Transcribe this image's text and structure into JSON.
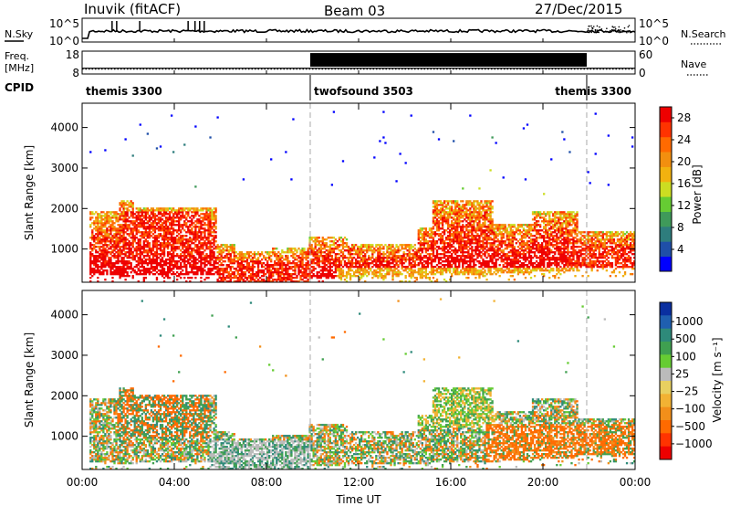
{
  "header": {
    "station": "Inuvik (fitACF)",
    "beam": "Beam 03",
    "date": "27/Dec/2015"
  },
  "left_labels": {
    "nsky": "N.Sky",
    "freq": "Freq.",
    "freq_unit": "[MHz]",
    "cpid": "CPID"
  },
  "right_labels": {
    "nsearch": "N.Search",
    "nave": "Nave"
  },
  "cpid_segments": [
    {
      "label": "themis 3300",
      "start_h": 0,
      "end_h": 9.9
    },
    {
      "label": "twofsound 3503",
      "start_h": 9.9,
      "end_h": 21.9
    },
    {
      "label": "themis 3300",
      "start_h": 21.9,
      "end_h": 24
    }
  ],
  "chart_data": [
    {
      "type": "line",
      "panel": "noise",
      "yticks_left": [
        "10^5",
        "10^0"
      ],
      "yticks_right": [
        "10^5",
        "10^0"
      ],
      "x_range_h": [
        0,
        24
      ]
    },
    {
      "type": "line",
      "panel": "frequency",
      "yticks_left": [
        18,
        8
      ],
      "yticks_right": [
        60,
        0
      ],
      "freq_mhz": 10.5,
      "nave_twofsound": 55,
      "x_range_h": [
        0,
        24
      ]
    },
    {
      "type": "heatmap",
      "panel": "power",
      "ylabel": "Slant Range [km]",
      "yticks": [
        1000,
        2000,
        3000,
        4000
      ],
      "ylim": [
        180,
        4600
      ],
      "colorbar_label": "Power [dB]",
      "colorbar_ticks": [
        4,
        8,
        12,
        16,
        20,
        24,
        28
      ],
      "colorbar_range": [
        0,
        30
      ],
      "colors": [
        "#0000ff",
        "#1f4fa8",
        "#2e7d7d",
        "#3f9a5a",
        "#66cc33",
        "#ccdd22",
        "#f2b20f",
        "#f28f0f",
        "#ff6a00",
        "#ff3300",
        "#ee0000"
      ]
    },
    {
      "type": "heatmap",
      "panel": "velocity",
      "ylabel": "Slant Range [km]",
      "yticks": [
        1000,
        2000,
        3000,
        4000
      ],
      "ylim": [
        180,
        4600
      ],
      "xlabel": "Time UT",
      "xticks": [
        "00:00",
        "04:00",
        "08:00",
        "12:00",
        "16:00",
        "20:00",
        "00:00"
      ],
      "colorbar_label": "Velocity [m s⁻¹]",
      "colorbar_ticks": [
        "1000",
        "500",
        "100",
        "25",
        "−25",
        "−100",
        "−500",
        "−1000"
      ],
      "colors": [
        "#0a2fa0",
        "#1f5fb0",
        "#2e8a7a",
        "#3fa050",
        "#66cc33",
        "#bbbbbb",
        "#e8d060",
        "#f2b233",
        "#f28f1a",
        "#ff6a00",
        "#ff3300",
        "#ee0000"
      ]
    }
  ]
}
